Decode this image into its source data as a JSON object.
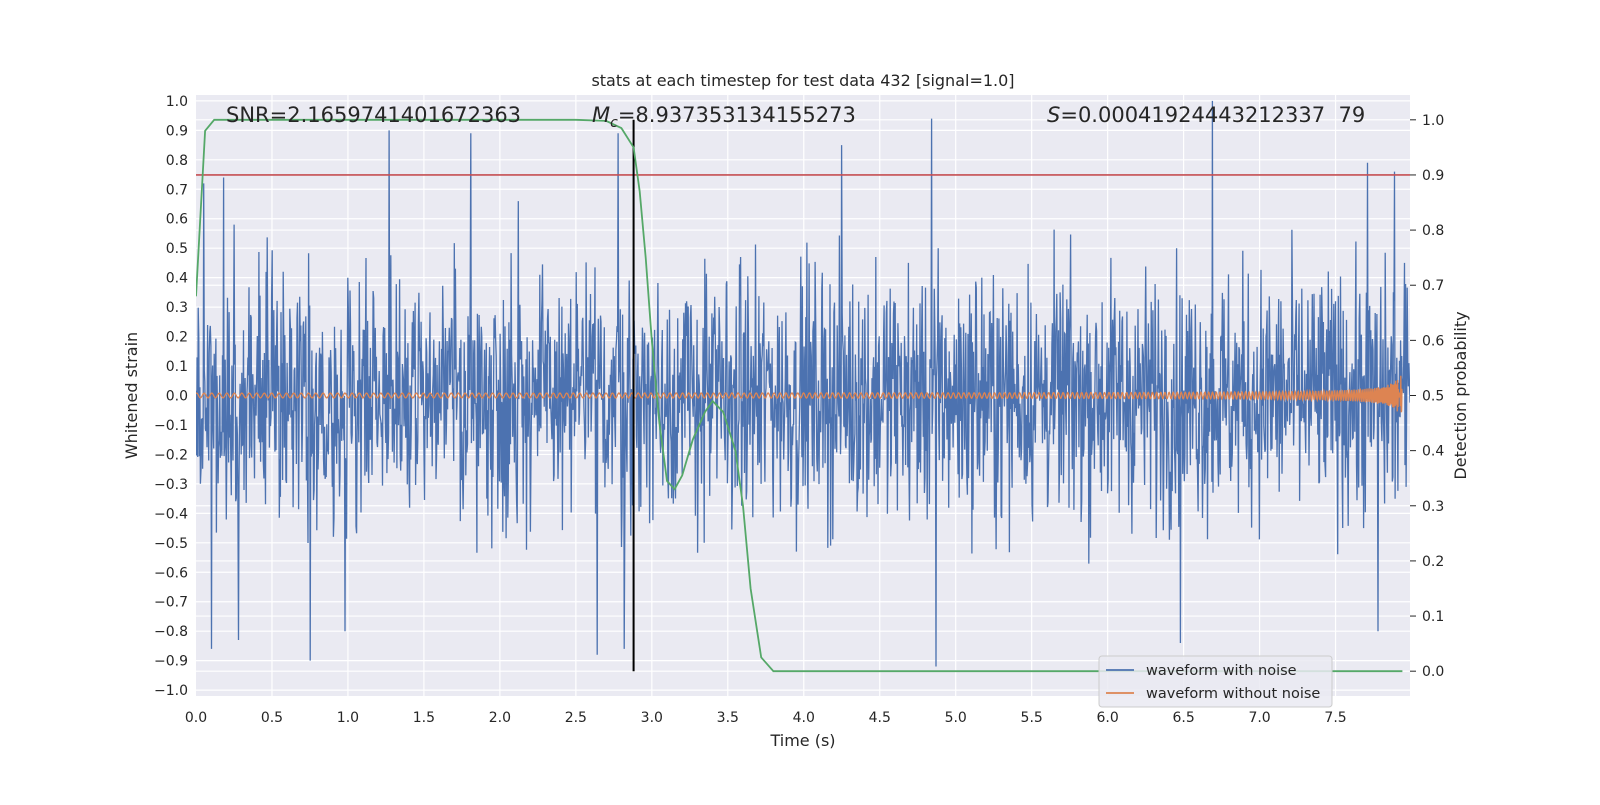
{
  "chart_data": {
    "type": "line",
    "title": "stats at each timestep for test data 432 [signal=1.0]",
    "xlabel": "Time (s)",
    "ylabel": "Whitened strain",
    "y2label": "Detection probability",
    "xlim": [
      0.0,
      7.99
    ],
    "ylim": [
      -1.02,
      1.02
    ],
    "y2lim": [
      -0.045,
      1.045
    ],
    "x_ticks": [
      "0.0",
      "0.5",
      "1.0",
      "1.5",
      "2.0",
      "2.5",
      "3.0",
      "3.5",
      "4.0",
      "4.5",
      "5.0",
      "5.5",
      "6.0",
      "6.5",
      "7.0",
      "7.5"
    ],
    "y_ticks": [
      "1.0",
      "0.9",
      "0.8",
      "0.7",
      "0.6",
      "0.5",
      "0.4",
      "0.3",
      "0.2",
      "0.1",
      "0.0",
      "−0.1",
      "−0.2",
      "−0.3",
      "−0.4",
      "−0.5",
      "−0.6",
      "−0.7",
      "−0.8",
      "−0.9",
      "−1.0"
    ],
    "y2_ticks": [
      "1.0",
      "0.9",
      "0.8",
      "0.7",
      "0.6",
      "0.5",
      "0.4",
      "0.3",
      "0.2",
      "0.1",
      "0.0"
    ],
    "grid": true,
    "legend_position": "lower-right",
    "annotations": {
      "snr": "SNR=2.1659741401672363",
      "mc_symbol": "M",
      "mc_sub": "c",
      "mc_value": "=8.937353134155273",
      "s_symbol": "S",
      "s_value": "=0.00041924443212337 79"
    },
    "series": [
      {
        "name": "waveform with noise",
        "color": "#4c72b0",
        "axis": "left",
        "kind": "noise",
        "envelope_typical": 0.42,
        "peaks": [
          {
            "x": 0.05,
            "y": 0.72
          },
          {
            "x": 0.18,
            "y": 0.74
          },
          {
            "x": 0.25,
            "y": 0.58
          },
          {
            "x": 1.27,
            "y": 0.9
          },
          {
            "x": 1.81,
            "y": 0.89
          },
          {
            "x": 2.12,
            "y": 0.66
          },
          {
            "x": 2.78,
            "y": 0.89
          },
          {
            "x": 4.25,
            "y": 0.85
          },
          {
            "x": 4.84,
            "y": 0.94
          },
          {
            "x": 6.69,
            "y": 1.0
          },
          {
            "x": 7.71,
            "y": 0.79
          },
          {
            "x": 7.89,
            "y": 0.76
          },
          {
            "x": 0.75,
            "y": -0.9
          },
          {
            "x": 0.1,
            "y": -0.86
          },
          {
            "x": 0.28,
            "y": -0.83
          },
          {
            "x": 0.98,
            "y": -0.8
          },
          {
            "x": 2.64,
            "y": -0.88
          },
          {
            "x": 2.82,
            "y": -0.86
          },
          {
            "x": 4.87,
            "y": -0.92
          },
          {
            "x": 6.48,
            "y": -0.84
          },
          {
            "x": 7.78,
            "y": -0.8
          }
        ]
      },
      {
        "name": "waveform without noise",
        "color": "#dd8452",
        "axis": "left",
        "kind": "chirp",
        "start_amplitude": 0.008,
        "end_amplitude": 0.08,
        "end_time": 7.94
      },
      {
        "name": "detection probability",
        "color": "#55a868",
        "axis": "right",
        "x": [
          0.0,
          0.06,
          0.12,
          0.3,
          0.6,
          1.0,
          1.5,
          2.0,
          2.5,
          2.7,
          2.8,
          2.88,
          2.92,
          2.96,
          3.0,
          3.05,
          3.1,
          3.15,
          3.2,
          3.27,
          3.35,
          3.4,
          3.47,
          3.55,
          3.6,
          3.65,
          3.72,
          3.8,
          4.0,
          5.0,
          6.0,
          7.0,
          7.94
        ],
        "values": [
          0.68,
          0.98,
          1.0,
          1.0,
          1.0,
          1.0,
          1.0,
          1.0,
          1.0,
          0.998,
          0.985,
          0.95,
          0.87,
          0.75,
          0.6,
          0.45,
          0.345,
          0.33,
          0.355,
          0.42,
          0.47,
          0.49,
          0.47,
          0.4,
          0.3,
          0.15,
          0.025,
          0.0,
          0.0,
          0.0,
          0.0,
          0.0,
          0.0
        ]
      }
    ],
    "reference_lines": [
      {
        "orientation": "horizontal",
        "axis": "right",
        "y": 0.9,
        "color": "#c44e52"
      },
      {
        "orientation": "vertical",
        "x": 2.88,
        "color": "#000000"
      }
    ]
  }
}
